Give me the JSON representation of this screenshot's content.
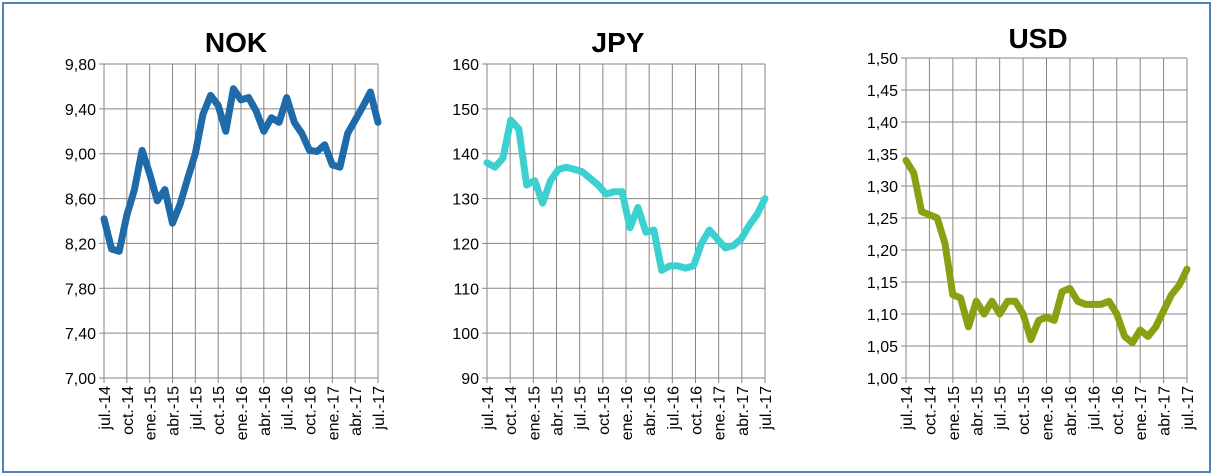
{
  "chart_data": [
    {
      "type": "line",
      "title": "NOK",
      "color": "#1f6aa8",
      "ylim": [
        7.0,
        9.8
      ],
      "yticks": [
        "7,00",
        "7,40",
        "7,80",
        "8,20",
        "8,60",
        "9,00",
        "9,40",
        "9,80"
      ],
      "xticks": [
        "jul.-14",
        "oct.-14",
        "ene.-15",
        "abr.-15",
        "jul.-15",
        "oct.-15",
        "ene.-16",
        "abr.-16",
        "jul.-16",
        "oct.-16",
        "ene.-17",
        "abr.-17",
        "jul.-17"
      ],
      "grid": true,
      "values": [
        8.42,
        8.15,
        8.13,
        8.45,
        8.68,
        9.03,
        8.82,
        8.58,
        8.68,
        8.38,
        8.55,
        8.78,
        9.0,
        9.35,
        9.52,
        9.43,
        9.2,
        9.58,
        9.48,
        9.5,
        9.38,
        9.2,
        9.32,
        9.28,
        9.5,
        9.28,
        9.18,
        9.03,
        9.02,
        9.08,
        8.9,
        8.88,
        9.18,
        9.3,
        9.42,
        9.55,
        9.28
      ]
    },
    {
      "type": "line",
      "title": "JPY",
      "color": "#3dd0d0",
      "ylim": [
        90,
        160
      ],
      "yticks": [
        "90",
        "100",
        "110",
        "120",
        "130",
        "140",
        "150",
        "160"
      ],
      "xticks": [
        "jul.-14",
        "oct.-14",
        "ene.-15",
        "abr.-15",
        "jul.-15",
        "oct.-15",
        "ene.-16",
        "abr.-16",
        "jul.-16",
        "oct.-16",
        "ene.-17",
        "abr.-17",
        "jul.-17"
      ],
      "grid": true,
      "values": [
        138,
        137,
        139,
        147.5,
        145.5,
        133,
        134,
        129,
        134,
        136.5,
        137,
        136.5,
        136,
        134.5,
        133,
        131,
        131.5,
        131.5,
        123.5,
        128,
        122.5,
        123,
        114,
        115,
        115,
        114.5,
        115,
        120,
        123,
        121,
        119,
        119.5,
        121,
        124,
        126.5,
        130
      ]
    },
    {
      "type": "line",
      "title": "USD",
      "color": "#8aa012",
      "ylim": [
        1.0,
        1.5
      ],
      "yticks": [
        "1,00",
        "1,05",
        "1,10",
        "1,15",
        "1,20",
        "1,25",
        "1,30",
        "1,35",
        "1,40",
        "1,45",
        "1,50"
      ],
      "xticks": [
        "jul.-14",
        "oct.-14",
        "ene.-15",
        "abr.-15",
        "jul.-15",
        "oct.-15",
        "ene.-16",
        "abr.-16",
        "jul.-16",
        "oct.-16",
        "ene.-17",
        "abr.-17",
        "jul.-17"
      ],
      "grid": true,
      "values": [
        1.34,
        1.32,
        1.26,
        1.255,
        1.25,
        1.21,
        1.13,
        1.125,
        1.08,
        1.12,
        1.1,
        1.12,
        1.1,
        1.12,
        1.12,
        1.1,
        1.06,
        1.09,
        1.095,
        1.09,
        1.135,
        1.14,
        1.12,
        1.115,
        1.115,
        1.115,
        1.12,
        1.1,
        1.065,
        1.055,
        1.075,
        1.065,
        1.08,
        1.105,
        1.13,
        1.145,
        1.17
      ]
    }
  ]
}
